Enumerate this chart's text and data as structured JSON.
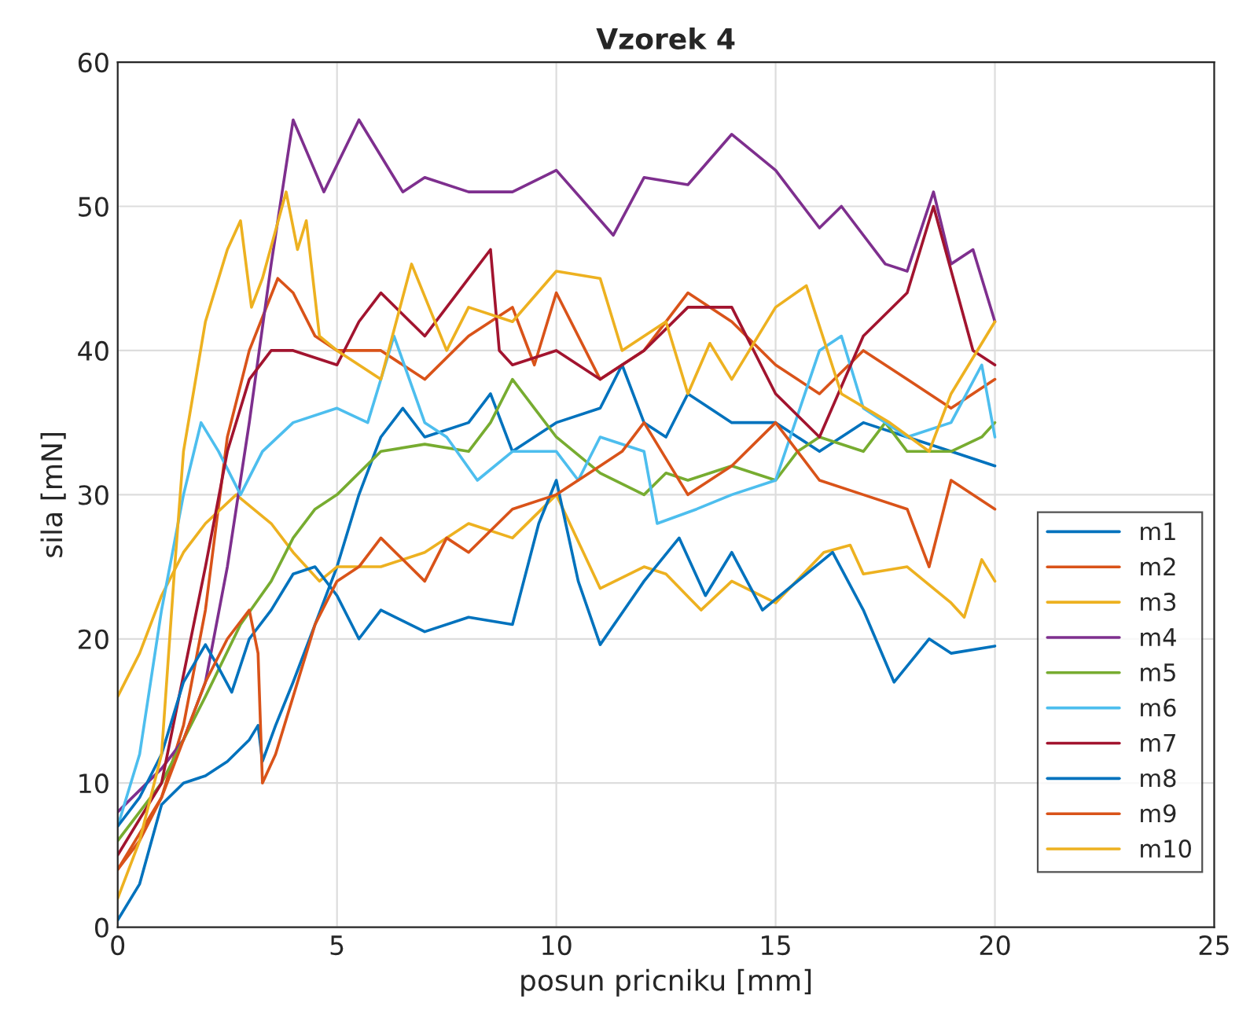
{
  "chart_data": {
    "type": "line",
    "title": "Vzorek 4",
    "xlabel": "posun pricniku [mm]",
    "ylabel": "sila [mN]",
    "xlim": [
      0,
      25
    ],
    "ylim": [
      0,
      60
    ],
    "xticks": [
      0,
      5,
      10,
      15,
      20,
      25
    ],
    "yticks": [
      0,
      10,
      20,
      30,
      40,
      50,
      60
    ],
    "grid": true,
    "legend": "bottom right",
    "line_style": "solid",
    "marker": "none",
    "series": [
      {
        "name": "m1",
        "color": "#0072bd",
        "x": [
          0,
          0.5,
          1,
          1.5,
          2,
          2.5,
          3,
          3.2,
          3.3,
          3.6,
          4,
          4.5,
          5,
          5.5,
          6,
          6.5,
          7,
          8,
          8.5,
          9,
          10,
          11,
          11.5,
          12,
          12.5,
          13,
          14,
          15,
          16,
          17,
          18,
          19,
          20
        ],
        "values": [
          0.5,
          3,
          8.5,
          10,
          10.5,
          11.5,
          13,
          14,
          11.5,
          14,
          17,
          21,
          25,
          30,
          34,
          36,
          34,
          35,
          37,
          33,
          35,
          36,
          39,
          35,
          34,
          37,
          35,
          35,
          33,
          35,
          34,
          33,
          32
        ]
      },
      {
        "name": "m2",
        "color": "#d95319",
        "x": [
          0,
          1,
          1.5,
          2,
          2.5,
          3,
          3.65,
          4,
          4.5,
          5,
          6,
          7,
          8,
          9,
          9.5,
          10,
          11,
          12,
          13,
          14,
          15,
          16,
          17,
          18,
          19,
          20
        ],
        "values": [
          4,
          9,
          14,
          22,
          34,
          40,
          45,
          44,
          41,
          40,
          40,
          38,
          41,
          43,
          39,
          44,
          38,
          40,
          44,
          42,
          39,
          37,
          40,
          38,
          36,
          38
        ]
      },
      {
        "name": "m3",
        "color": "#edb120",
        "x": [
          0,
          0.5,
          1,
          1.5,
          2,
          2.7,
          3.5,
          4,
          4.6,
          5,
          6,
          7,
          8,
          9,
          10,
          11,
          12,
          12.5,
          13.3,
          14,
          15,
          16.1,
          16.7,
          17,
          18,
          19,
          19.3,
          19.7,
          20
        ],
        "values": [
          16,
          19,
          23,
          26,
          28,
          30,
          28,
          26,
          24,
          25,
          25,
          26,
          28,
          27,
          30,
          23.5,
          25,
          24.5,
          22,
          24,
          22.5,
          26,
          26.5,
          24.5,
          25,
          22.5,
          21.5,
          25.5,
          24
        ]
      },
      {
        "name": "m4",
        "color": "#7e2f8e",
        "x": [
          0,
          0.5,
          1,
          1.5,
          2,
          2.5,
          3,
          3.5,
          4,
          4.7,
          5.5,
          6.5,
          7,
          8,
          9,
          10,
          11.3,
          12,
          13,
          14,
          15,
          16,
          16.5,
          17.5,
          18,
          18.6,
          19,
          19.5,
          20
        ],
        "values": [
          8,
          9.5,
          11,
          13,
          17,
          25,
          35,
          46,
          56,
          51,
          56,
          51,
          52,
          51,
          51,
          52.5,
          48,
          52,
          51.5,
          55,
          52.5,
          48.5,
          50,
          46,
          45.5,
          51,
          46,
          47,
          42
        ]
      },
      {
        "name": "m5",
        "color": "#77ac30",
        "x": [
          0,
          0.5,
          1,
          1.5,
          2,
          2.8,
          3.5,
          4,
          4.5,
          5,
          6,
          7,
          8,
          8.5,
          9,
          9.5,
          10,
          11,
          12,
          12.5,
          13,
          14,
          15,
          15.5,
          16,
          17,
          17.5,
          18,
          19,
          19.7,
          20
        ],
        "values": [
          6,
          8,
          10,
          13,
          16,
          21,
          24,
          27,
          29,
          30,
          33,
          33.5,
          33,
          35,
          38,
          36,
          34,
          31.5,
          30,
          31.5,
          31,
          32,
          31,
          33,
          34,
          33,
          35,
          33,
          33,
          34,
          35
        ]
      },
      {
        "name": "m6",
        "color": "#4dbeee",
        "x": [
          0,
          0.5,
          1,
          1.5,
          1.9,
          2.3,
          2.8,
          3.3,
          4,
          5,
          5.7,
          6.3,
          7,
          7.5,
          8.2,
          9,
          10,
          10.5,
          11,
          12,
          12.3,
          13.2,
          14,
          15,
          16,
          16.5,
          17,
          18,
          19,
          19.7,
          20
        ],
        "values": [
          7,
          12,
          22,
          30,
          35,
          33,
          30,
          33,
          35,
          36,
          35,
          41,
          35,
          34,
          31,
          33,
          33,
          31,
          34,
          33,
          28,
          29,
          30,
          31,
          40,
          41,
          36,
          34,
          35,
          39,
          34
        ]
      },
      {
        "name": "m7",
        "color": "#a2142f",
        "x": [
          0,
          1,
          2,
          2.5,
          3,
          3.5,
          4,
          5,
          5.5,
          6,
          7,
          8,
          8.5,
          8.7,
          9,
          10,
          11,
          12,
          13,
          14,
          15,
          16,
          17,
          18,
          18.6,
          19.5,
          20
        ],
        "values": [
          5,
          10,
          25,
          33,
          38,
          40,
          40,
          39,
          42,
          44,
          41,
          45,
          47,
          40,
          39,
          40,
          38,
          40,
          43,
          43,
          37,
          34,
          41,
          44,
          50,
          40,
          39
        ]
      },
      {
        "name": "m8",
        "color": "#0072bd",
        "x": [
          0,
          0.5,
          1,
          1.5,
          2,
          2.3,
          2.6,
          3,
          3.5,
          4,
          4.5,
          5,
          5.5,
          6,
          7,
          8,
          9,
          9.6,
          10,
          10.5,
          11,
          12,
          12.8,
          13.4,
          14,
          14.7,
          15.5,
          16.3,
          17,
          17.7,
          18.5,
          19,
          20
        ],
        "values": [
          7,
          9,
          12,
          17,
          19.6,
          18,
          16.3,
          20,
          22,
          24.5,
          25,
          23,
          20,
          22,
          20.5,
          21.5,
          21,
          28,
          31,
          24,
          19.6,
          24,
          27,
          23,
          26,
          22,
          24,
          26,
          22,
          17,
          20,
          19,
          19.5
        ]
      },
      {
        "name": "m9",
        "color": "#d95319",
        "x": [
          0,
          0.5,
          1,
          1.5,
          2,
          2.5,
          3,
          3.2,
          3.3,
          3.6,
          4,
          4.5,
          5,
          5.5,
          6,
          7,
          7.5,
          8,
          9,
          10,
          11,
          11.5,
          12,
          13,
          14,
          15,
          16,
          17,
          18,
          18.5,
          19,
          20
        ],
        "values": [
          4,
          6,
          9,
          13,
          17,
          20,
          22,
          19,
          10,
          12,
          16,
          21,
          24,
          25,
          27,
          24,
          27,
          26,
          29,
          30,
          32,
          33,
          35,
          30,
          32,
          35,
          31,
          30,
          29,
          25,
          31,
          29
        ]
      },
      {
        "name": "m10",
        "color": "#edb120",
        "x": [
          0,
          0.5,
          1,
          1.3,
          1.5,
          2,
          2.5,
          2.8,
          3.05,
          3.3,
          3.84,
          4.1,
          4.3,
          4.6,
          5,
          6,
          6.7,
          7.5,
          8,
          9,
          10,
          11,
          11.5,
          12.5,
          13,
          13.5,
          14,
          15,
          15.7,
          16.5,
          17.6,
          18.5,
          19,
          20
        ],
        "values": [
          2,
          6,
          12,
          25,
          33,
          42,
          47,
          49,
          43,
          45,
          51,
          47,
          49,
          41,
          40,
          38,
          46,
          40,
          43,
          42,
          45.5,
          45,
          40,
          42,
          37,
          40.5,
          38,
          43,
          44.5,
          37,
          35,
          33,
          37,
          42
        ]
      }
    ]
  }
}
